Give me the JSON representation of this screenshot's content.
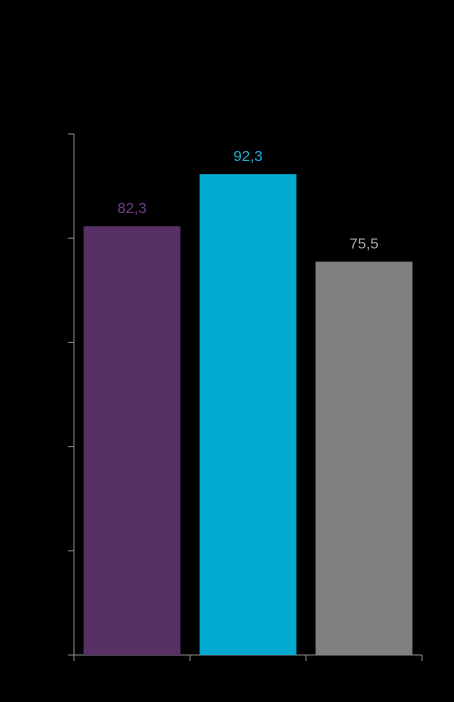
{
  "chart_data": {
    "type": "bar",
    "categories": [
      "",
      "",
      ""
    ],
    "values": [
      82.3,
      92.3,
      75.5
    ],
    "value_labels": [
      "82,3",
      "92,3",
      "75,5"
    ],
    "colors": [
      "#573165",
      "#00a9cf",
      "#808080"
    ],
    "label_colors": [
      "#6f3d85",
      "#1ab2d6",
      "#a6a6a6"
    ],
    "title": "",
    "xlabel": "",
    "ylabel": "",
    "ylim": [
      0,
      100
    ],
    "y_ticks": [
      0,
      20,
      40,
      60,
      80,
      100
    ],
    "grid": false,
    "background": "#000000",
    "axis_color": "#8c8c8c"
  }
}
